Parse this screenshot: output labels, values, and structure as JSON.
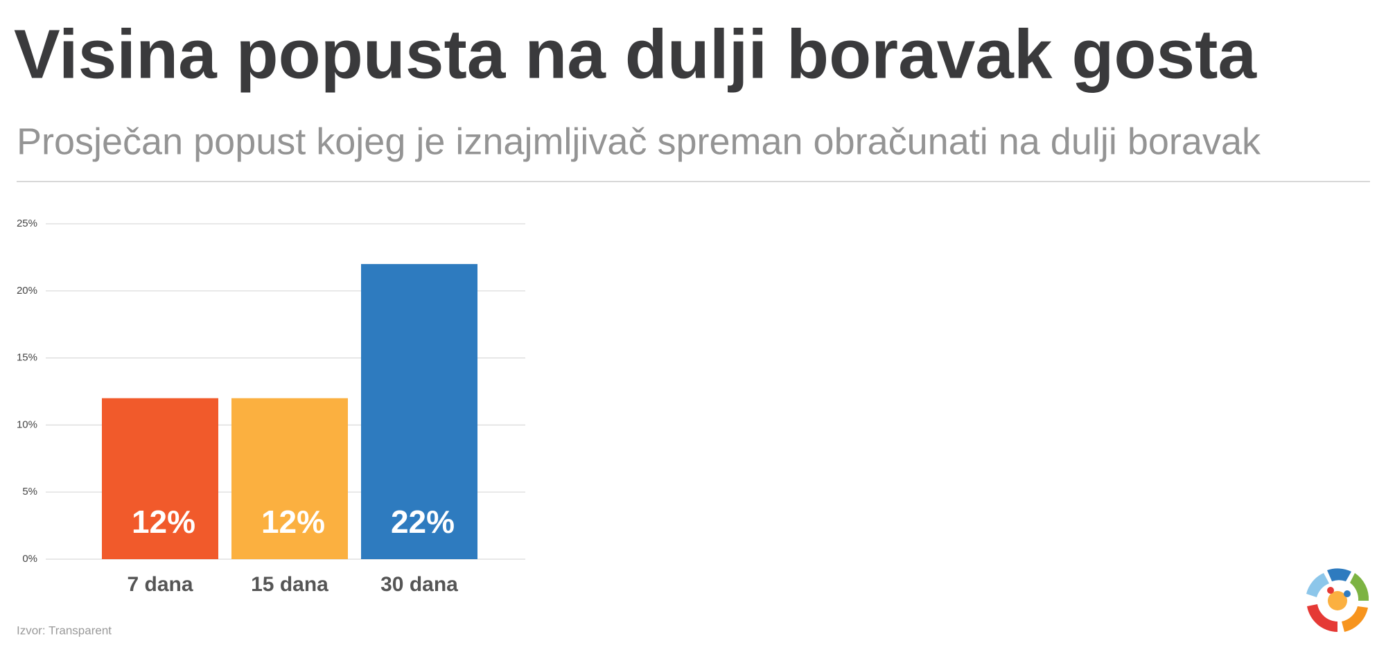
{
  "chart_data": {
    "type": "bar",
    "title": "Visina popusta na dulji boravak gosta",
    "subtitle": "Prosječan popust kojeg je iznajmljivač spreman obračunati na dulji boravak",
    "source": "Izvor: Transparent",
    "categories": [
      "7 dana",
      "15 dana",
      "30 dana"
    ],
    "values": [
      12,
      12,
      22
    ],
    "value_labels": [
      "12%",
      "12%",
      "22%"
    ],
    "colors": [
      "#f15a2b",
      "#fbb040",
      "#2e7bbf"
    ],
    "ylim": [
      0,
      25
    ],
    "yticks": [
      {
        "value": 0,
        "label": "0%"
      },
      {
        "value": 5,
        "label": "5%"
      },
      {
        "value": 10,
        "label": "10%"
      },
      {
        "value": 15,
        "label": "15%"
      },
      {
        "value": 20,
        "label": "20%"
      },
      {
        "value": 25,
        "label": "25%"
      }
    ],
    "grid": true
  }
}
